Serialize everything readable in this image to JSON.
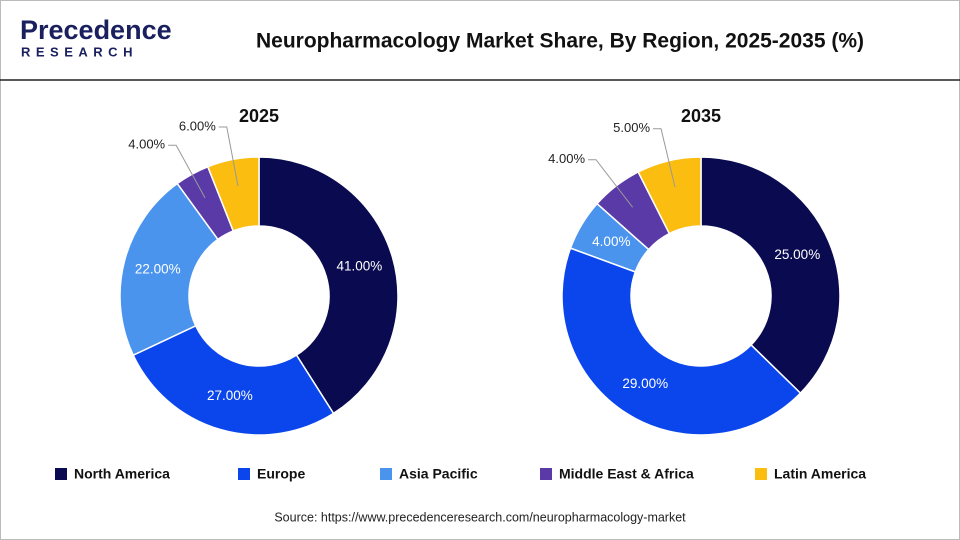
{
  "header": {
    "logo_top": "Precedence",
    "logo_bottom": "RESEARCH",
    "title": "Neuropharmacology Market Share, By Region, 2025-2035 (%)"
  },
  "chart_data": [
    {
      "type": "donut",
      "title": "2025",
      "categories": [
        "North America",
        "Europe",
        "Asia Pacific",
        "Middle East & Africa",
        "Latin America"
      ],
      "values": [
        41,
        27,
        22,
        4,
        6
      ],
      "value_labels": [
        "41.00%",
        "27.00%",
        "22.00%",
        "4.00%",
        "6.00%"
      ],
      "colors": [
        "#0a0a50",
        "#0b46ec",
        "#4a94ee",
        "#5a3aa6",
        "#fbbd10"
      ]
    },
    {
      "type": "donut",
      "title": "2035",
      "categories": [
        "North America",
        "Europe",
        "Asia Pacific",
        "Middle East & Africa",
        "Latin America"
      ],
      "values": [
        25,
        29,
        4,
        4,
        5
      ],
      "value_labels": [
        "25.00%",
        "29.00%",
        "4.00%",
        "4.00%",
        "5.00%"
      ],
      "colors": [
        "#0a0a50",
        "#0b46ec",
        "#4a94ee",
        "#5a3aa6",
        "#fbbd10"
      ]
    }
  ],
  "source": "Source: https://www.precedenceresearch.com/neuropharmacology-market"
}
